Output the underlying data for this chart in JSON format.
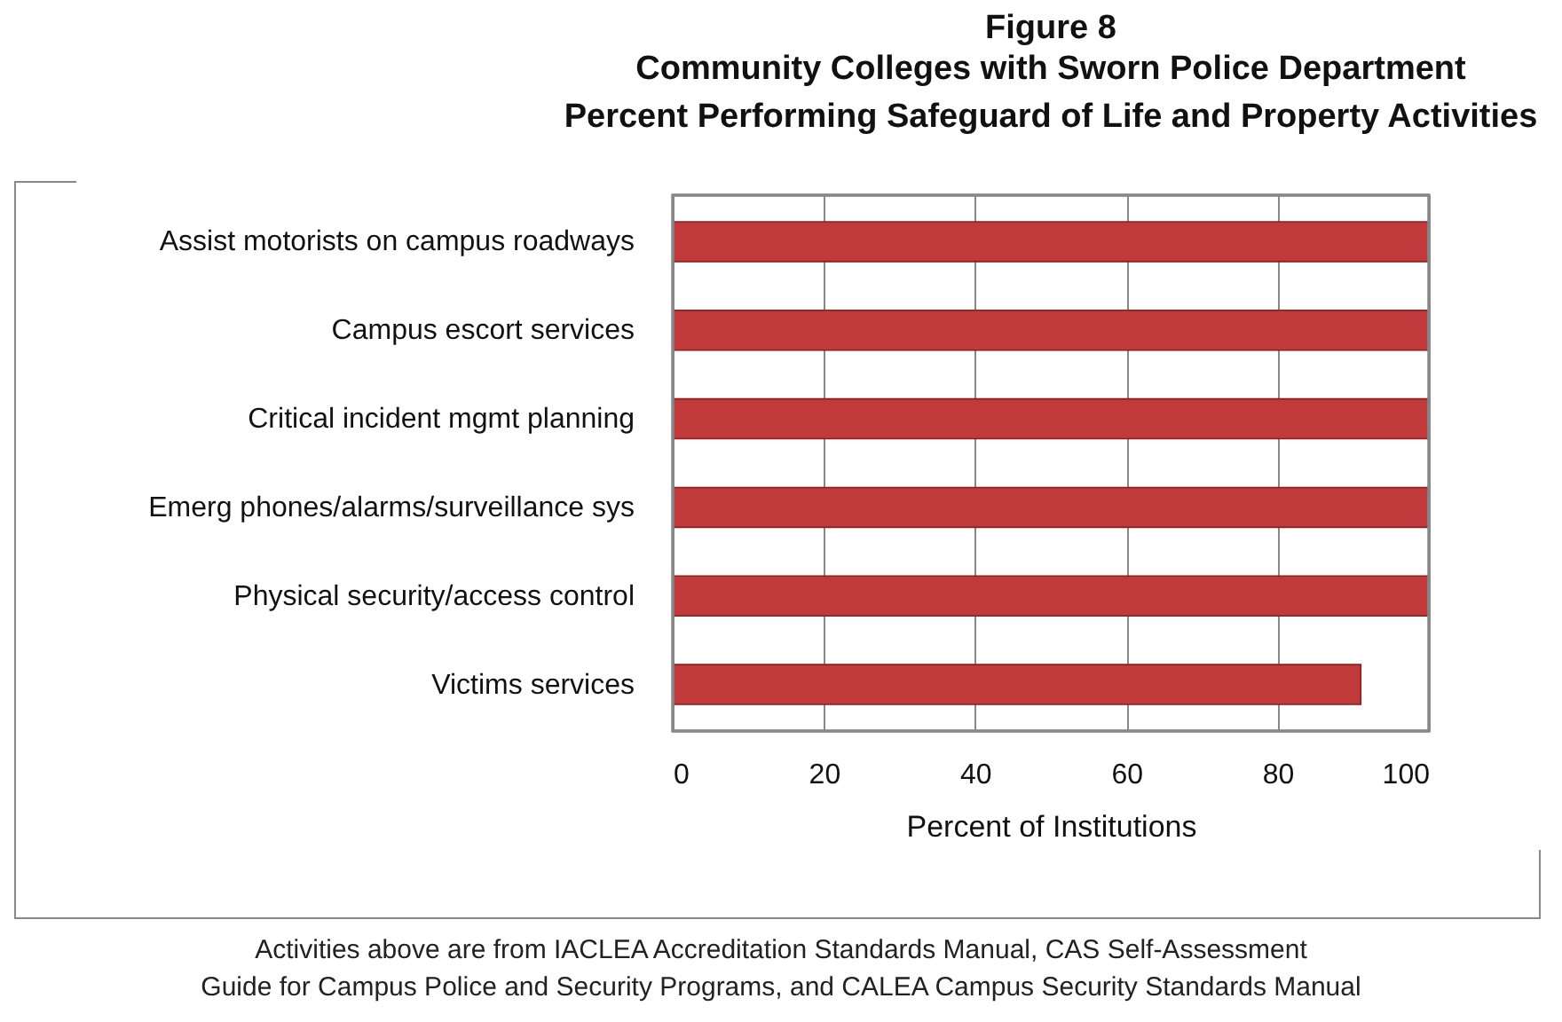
{
  "chart_data": {
    "type": "bar",
    "orientation": "horizontal",
    "title": "Figure 8",
    "subtitle": "Community Colleges with Sworn Police Department\nPercent Performing Safeguard of Life and Property Activities",
    "xlabel": "Percent of Institutions",
    "categories": [
      "Assist motorists on campus roadways",
      "Campus escort services",
      "Critical incident mgmt planning",
      "Emerg phones/alarms/surveillance sys",
      "Physical security/access control",
      "Victims services"
    ],
    "values": [
      100,
      100,
      100,
      100,
      100,
      91
    ],
    "color": "#c0393b",
    "xlim": [
      0,
      100
    ],
    "xticks": [
      0,
      20,
      40,
      60,
      80,
      100
    ],
    "grid": "x",
    "annotations": [
      "Activities above are from IACLEA Accreditation Standards Manual, CAS Self-Assessment\nGuide for Campus Police and Security Programs, and CALEA Campus Security Standards Manual"
    ]
  }
}
